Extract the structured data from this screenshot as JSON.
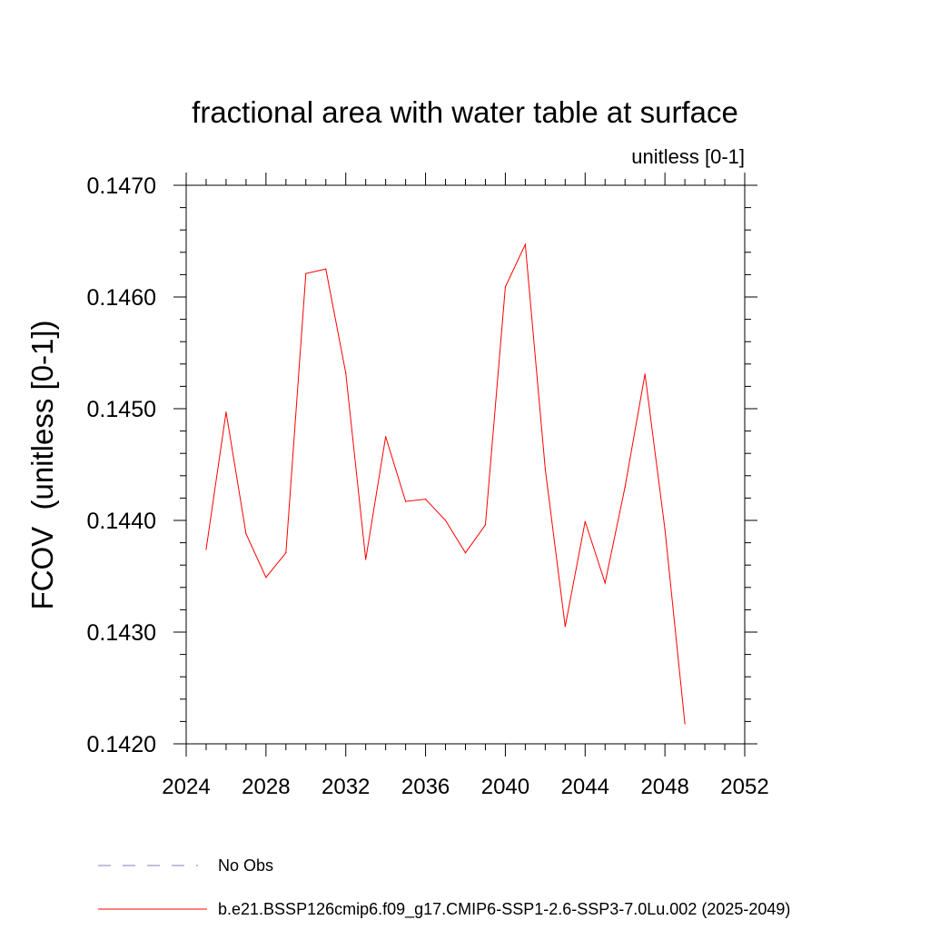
{
  "chart_data": {
    "type": "line",
    "title": "fractional area with water table at surface",
    "units_label": "unitless [0-1]",
    "ylabel": "FCOV  (unitless [0-1])",
    "xlabel": "",
    "xlim": [
      2024,
      2052
    ],
    "ylim": [
      0.142,
      0.147
    ],
    "x_ticks": [
      2024,
      2028,
      2032,
      2036,
      2040,
      2044,
      2048,
      2052
    ],
    "x_tick_labels": [
      "2024",
      "2028",
      "2032",
      "2036",
      "2040",
      "2044",
      "2048",
      "2052"
    ],
    "y_ticks": [
      0.142,
      0.143,
      0.144,
      0.145,
      0.146,
      0.147
    ],
    "y_tick_labels": [
      "0.1420",
      "0.1430",
      "0.1440",
      "0.1450",
      "0.1460",
      "0.1470"
    ],
    "grid": false,
    "series": [
      {
        "name": "b.e21.BSSP126cmip6.f09_g17.CMIP6-SSP1-2.6-SSP3-7.0Lu.002 (2025-2049)",
        "color": "#ff0000",
        "x": [
          2025,
          2026,
          2027,
          2028,
          2029,
          2030,
          2031,
          2032,
          2033,
          2034,
          2035,
          2036,
          2037,
          2038,
          2039,
          2040,
          2041,
          2042,
          2043,
          2044,
          2045,
          2046,
          2047,
          2048,
          2049
        ],
        "values": [
          0.14374,
          0.14497,
          0.14388,
          0.14349,
          0.14371,
          0.14621,
          0.14625,
          0.14532,
          0.14365,
          0.14475,
          0.14417,
          0.14419,
          0.144,
          0.14371,
          0.14396,
          0.14609,
          0.14647,
          0.14446,
          0.14305,
          0.14399,
          0.14344,
          0.1443,
          0.14531,
          0.14392,
          0.14218
        ]
      }
    ],
    "legend": {
      "placement": "bottom-left",
      "entries": [
        {
          "label": "No Obs",
          "style": "dashed",
          "color": "#8a7fc0"
        },
        {
          "label": "b.e21.BSSP126cmip6.f09_g17.CMIP6-SSP1-2.6-SSP3-7.0Lu.002 (2025-2049)",
          "style": "solid",
          "color": "#ff0000"
        }
      ]
    }
  }
}
